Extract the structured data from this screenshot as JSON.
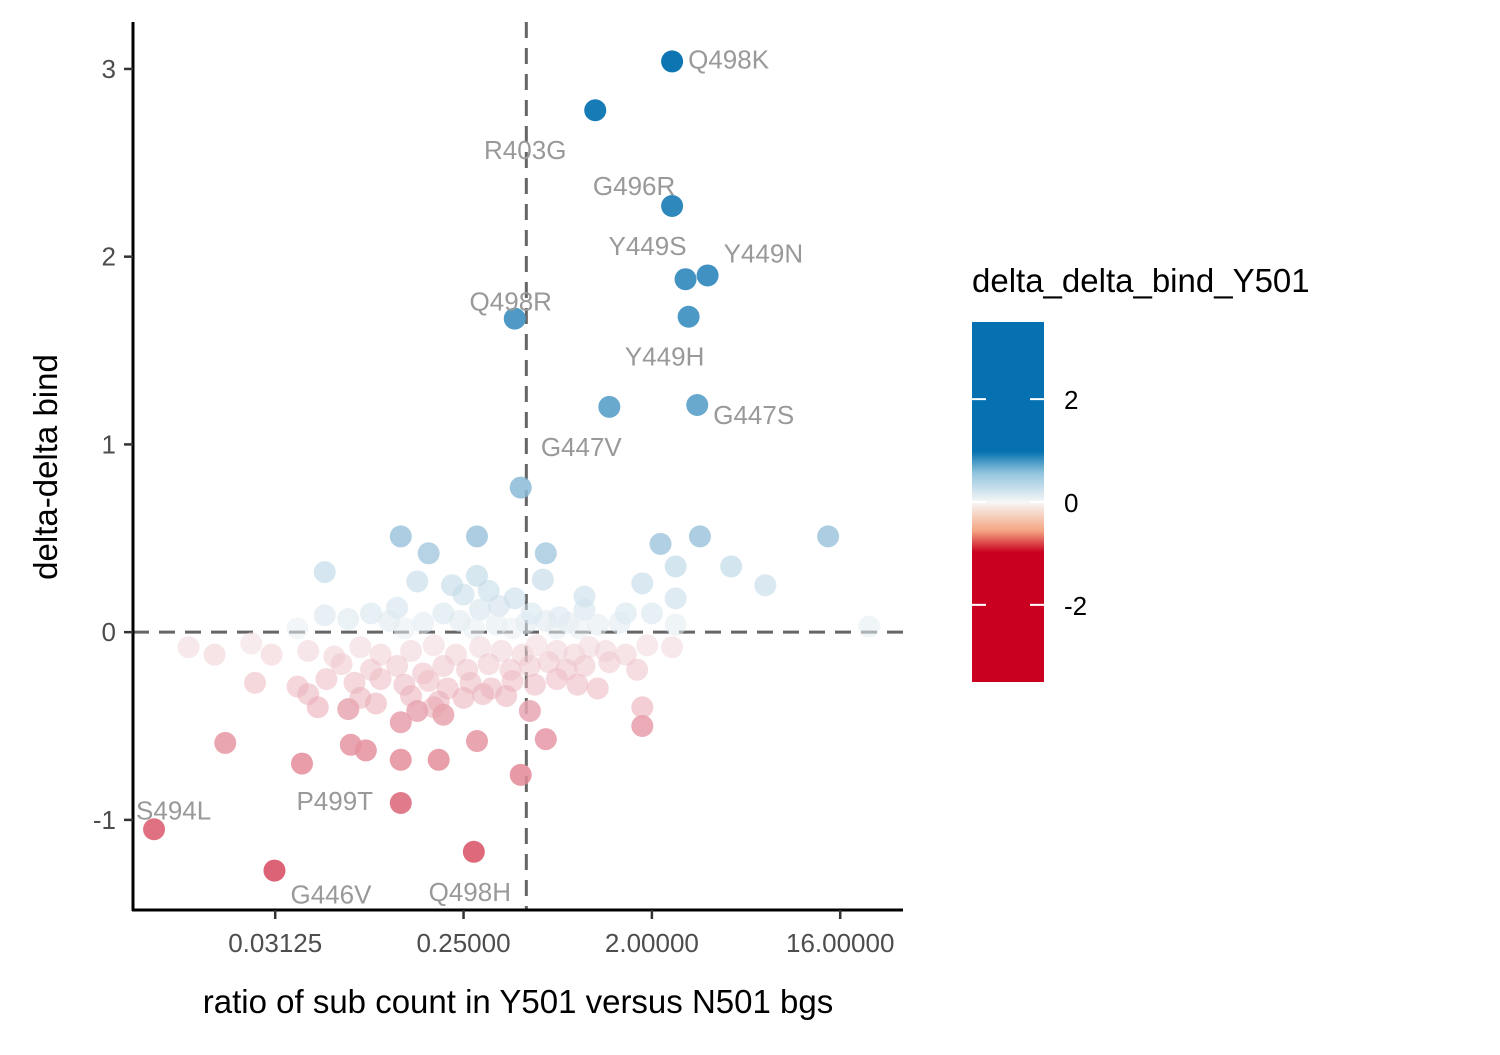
{
  "chart_data": {
    "type": "scatter",
    "title": "",
    "xlabel": "ratio of sub count in Y501 versus N501 bgs",
    "ylabel": "delta-delta bind",
    "x_scale": "log2",
    "xlim": [
      0.0065,
      32
    ],
    "ylim": [
      -1.48,
      3.25
    ],
    "x_ticks": [
      {
        "value": 0.03125,
        "label": "0.03125"
      },
      {
        "value": 0.25,
        "label": "0.25000"
      },
      {
        "value": 2,
        "label": "2.00000"
      },
      {
        "value": 16,
        "label": "16.00000"
      }
    ],
    "y_ticks": [
      {
        "value": -1,
        "label": "-1"
      },
      {
        "value": 0,
        "label": "0"
      },
      {
        "value": 1,
        "label": "1"
      },
      {
        "value": 2,
        "label": "2"
      },
      {
        "value": 3,
        "label": "3"
      }
    ],
    "reference_lines": {
      "x": 0.5,
      "y": 0
    },
    "grid": false,
    "legend": {
      "title": "delta_delta_bind_Y501",
      "position": "right",
      "type": "colorbar",
      "range": [
        -3.5,
        3.5
      ],
      "ticks": [
        {
          "value": 2,
          "label": "2"
        },
        {
          "value": 0,
          "label": "0"
        },
        {
          "value": -2,
          "label": "-2"
        }
      ],
      "colors": {
        "low": "#ca0020",
        "mid": "#f7f7f7",
        "high": "#0571b0"
      }
    },
    "labeled_points": [
      {
        "label": "Q498K",
        "x": 2.5,
        "y": 3.04
      },
      {
        "label": "R403G",
        "x": 1.07,
        "y": 2.78
      },
      {
        "label": "G496R",
        "x": 2.5,
        "y": 2.27
      },
      {
        "label": "Y449S",
        "x": 2.9,
        "y": 1.88
      },
      {
        "label": "Y449N",
        "x": 3.7,
        "y": 1.9
      },
      {
        "label": "Q498R",
        "x": 0.44,
        "y": 1.67
      },
      {
        "label": "Y449H",
        "x": 3.0,
        "y": 1.68
      },
      {
        "label": "G447S",
        "x": 3.3,
        "y": 1.21
      },
      {
        "label": "G447V",
        "x": 1.25,
        "y": 1.2
      },
      {
        "label": "S494L",
        "x": 0.0082,
        "y": -1.05
      },
      {
        "label": "P499T",
        "x": 0.125,
        "y": -0.91
      },
      {
        "label": "G446V",
        "x": 0.031,
        "y": -1.27
      },
      {
        "label": "Q498H",
        "x": 0.28,
        "y": -1.17
      }
    ],
    "points": [
      {
        "x": 0.47,
        "y": 0.77
      },
      {
        "x": 0.125,
        "y": 0.51
      },
      {
        "x": 0.29,
        "y": 0.51
      },
      {
        "x": 3.4,
        "y": 0.51
      },
      {
        "x": 14.0,
        "y": 0.51
      },
      {
        "x": 0.17,
        "y": 0.42
      },
      {
        "x": 0.62,
        "y": 0.42
      },
      {
        "x": 2.2,
        "y": 0.47
      },
      {
        "x": 2.6,
        "y": 0.35
      },
      {
        "x": 4.8,
        "y": 0.35
      },
      {
        "x": 0.054,
        "y": 0.32
      },
      {
        "x": 0.29,
        "y": 0.3
      },
      {
        "x": 0.6,
        "y": 0.28
      },
      {
        "x": 0.15,
        "y": 0.27
      },
      {
        "x": 0.22,
        "y": 0.25
      },
      {
        "x": 0.33,
        "y": 0.22
      },
      {
        "x": 0.25,
        "y": 0.2
      },
      {
        "x": 0.44,
        "y": 0.18
      },
      {
        "x": 0.95,
        "y": 0.19
      },
      {
        "x": 1.8,
        "y": 0.26
      },
      {
        "x": 7.0,
        "y": 0.25
      },
      {
        "x": 2.6,
        "y": 0.18
      },
      {
        "x": 0.3,
        "y": 0.12
      },
      {
        "x": 0.37,
        "y": 0.14
      },
      {
        "x": 0.12,
        "y": 0.13
      },
      {
        "x": 0.09,
        "y": 0.1
      },
      {
        "x": 0.2,
        "y": 0.1
      },
      {
        "x": 0.53,
        "y": 0.1
      },
      {
        "x": 0.72,
        "y": 0.08
      },
      {
        "x": 0.95,
        "y": 0.12
      },
      {
        "x": 1.5,
        "y": 0.1
      },
      {
        "x": 2.0,
        "y": 0.1
      },
      {
        "x": 0.054,
        "y": 0.09
      },
      {
        "x": 0.07,
        "y": 0.07
      },
      {
        "x": 0.11,
        "y": 0.06
      },
      {
        "x": 0.16,
        "y": 0.05
      },
      {
        "x": 0.24,
        "y": 0.06
      },
      {
        "x": 0.36,
        "y": 0.04
      },
      {
        "x": 0.5,
        "y": 0.05
      },
      {
        "x": 0.62,
        "y": 0.06
      },
      {
        "x": 0.8,
        "y": 0.05
      },
      {
        "x": 1.1,
        "y": 0.04
      },
      {
        "x": 1.4,
        "y": 0.05
      },
      {
        "x": 2.6,
        "y": 0.04
      },
      {
        "x": 22.0,
        "y": 0.03
      },
      {
        "x": 0.04,
        "y": 0.02
      },
      {
        "x": 0.13,
        "y": 0.02
      },
      {
        "x": 0.28,
        "y": 0.02
      },
      {
        "x": 0.43,
        "y": 0.02
      },
      {
        "x": 0.7,
        "y": 0.02
      },
      {
        "x": 0.9,
        "y": 0.02
      },
      {
        "x": 0.012,
        "y": -0.08
      },
      {
        "x": 0.016,
        "y": -0.12
      },
      {
        "x": 0.024,
        "y": -0.06
      },
      {
        "x": 0.03,
        "y": -0.12
      },
      {
        "x": 0.045,
        "y": -0.1
      },
      {
        "x": 0.06,
        "y": -0.13
      },
      {
        "x": 0.08,
        "y": -0.08
      },
      {
        "x": 0.1,
        "y": -0.12
      },
      {
        "x": 0.14,
        "y": -0.1
      },
      {
        "x": 0.18,
        "y": -0.07
      },
      {
        "x": 0.23,
        "y": -0.12
      },
      {
        "x": 0.3,
        "y": -0.08
      },
      {
        "x": 0.38,
        "y": -0.1
      },
      {
        "x": 0.48,
        "y": -0.12
      },
      {
        "x": 0.56,
        "y": -0.07
      },
      {
        "x": 0.7,
        "y": -0.1
      },
      {
        "x": 0.85,
        "y": -0.12
      },
      {
        "x": 1.0,
        "y": -0.08
      },
      {
        "x": 1.2,
        "y": -0.1
      },
      {
        "x": 1.5,
        "y": -0.12
      },
      {
        "x": 1.9,
        "y": -0.07
      },
      {
        "x": 2.5,
        "y": -0.08
      },
      {
        "x": 0.065,
        "y": -0.17
      },
      {
        "x": 0.09,
        "y": -0.2
      },
      {
        "x": 0.12,
        "y": -0.18
      },
      {
        "x": 0.16,
        "y": -0.22
      },
      {
        "x": 0.2,
        "y": -0.18
      },
      {
        "x": 0.26,
        "y": -0.2
      },
      {
        "x": 0.33,
        "y": -0.17
      },
      {
        "x": 0.42,
        "y": -0.2
      },
      {
        "x": 0.52,
        "y": -0.18
      },
      {
        "x": 0.64,
        "y": -0.16
      },
      {
        "x": 0.78,
        "y": -0.2
      },
      {
        "x": 0.95,
        "y": -0.18
      },
      {
        "x": 1.25,
        "y": -0.16
      },
      {
        "x": 1.7,
        "y": -0.2
      },
      {
        "x": 0.025,
        "y": -0.27
      },
      {
        "x": 0.04,
        "y": -0.29
      },
      {
        "x": 0.055,
        "y": -0.25
      },
      {
        "x": 0.075,
        "y": -0.27
      },
      {
        "x": 0.1,
        "y": -0.25
      },
      {
        "x": 0.13,
        "y": -0.28
      },
      {
        "x": 0.17,
        "y": -0.26
      },
      {
        "x": 0.21,
        "y": -0.3
      },
      {
        "x": 0.27,
        "y": -0.27
      },
      {
        "x": 0.34,
        "y": -0.3
      },
      {
        "x": 0.43,
        "y": -0.26
      },
      {
        "x": 0.55,
        "y": -0.28
      },
      {
        "x": 0.7,
        "y": -0.25
      },
      {
        "x": 0.88,
        "y": -0.28
      },
      {
        "x": 1.1,
        "y": -0.3
      },
      {
        "x": 0.045,
        "y": -0.33
      },
      {
        "x": 0.08,
        "y": -0.35
      },
      {
        "x": 0.14,
        "y": -0.34
      },
      {
        "x": 0.19,
        "y": -0.37
      },
      {
        "x": 0.25,
        "y": -0.35
      },
      {
        "x": 0.31,
        "y": -0.33
      },
      {
        "x": 0.4,
        "y": -0.34
      },
      {
        "x": 0.05,
        "y": -0.4
      },
      {
        "x": 0.07,
        "y": -0.41
      },
      {
        "x": 0.095,
        "y": -0.38
      },
      {
        "x": 0.15,
        "y": -0.42
      },
      {
        "x": 0.18,
        "y": -0.4
      },
      {
        "x": 0.2,
        "y": -0.44
      },
      {
        "x": 0.52,
        "y": -0.42
      },
      {
        "x": 1.8,
        "y": -0.4
      },
      {
        "x": 0.125,
        "y": -0.48
      },
      {
        "x": 1.8,
        "y": -0.5
      },
      {
        "x": 0.018,
        "y": -0.59
      },
      {
        "x": 0.072,
        "y": -0.6
      },
      {
        "x": 0.085,
        "y": -0.63
      },
      {
        "x": 0.29,
        "y": -0.58
      },
      {
        "x": 0.62,
        "y": -0.57
      },
      {
        "x": 0.042,
        "y": -0.7
      },
      {
        "x": 0.125,
        "y": -0.68
      },
      {
        "x": 0.19,
        "y": -0.68
      },
      {
        "x": 0.47,
        "y": -0.76
      }
    ]
  }
}
